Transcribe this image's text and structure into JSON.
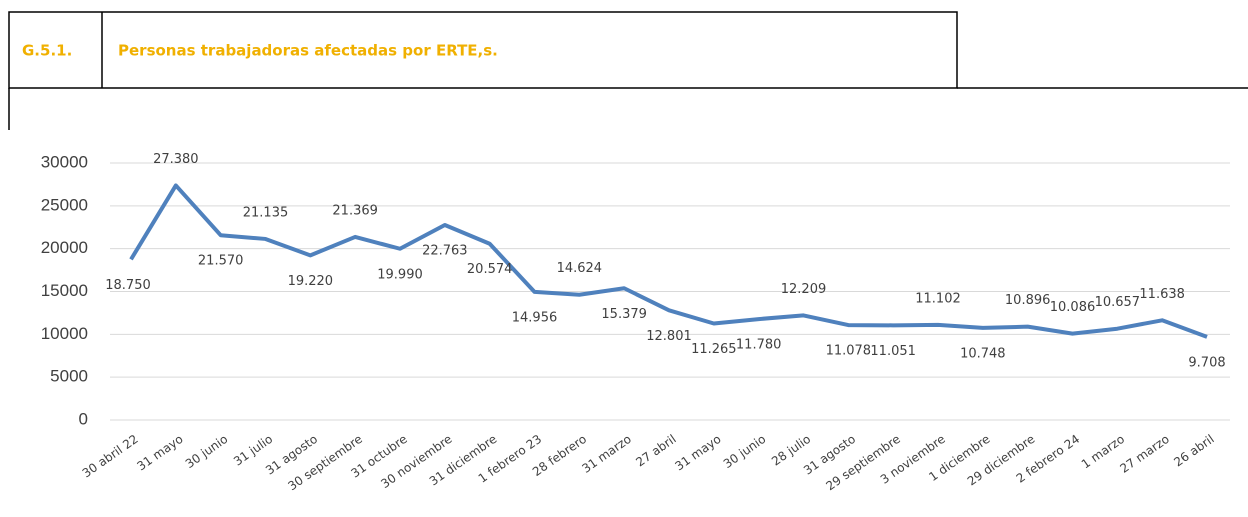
{
  "header": {
    "code": "G.5.1.",
    "title": "Personas trabajadoras afectadas por ERTE,s."
  },
  "chart_data": {
    "type": "line",
    "categories": [
      "30 abril 22",
      "31 mayo",
      "30 junio",
      "31 julio",
      "31 agosto",
      "30 septiembre",
      "31 octubre",
      "30 noviembre",
      "31 diciembre",
      "1 febrero 23",
      "28 febrero",
      "31 marzo",
      "27 abril",
      "31 mayo",
      "30 junio",
      "28 julio",
      "31 agosto",
      "29 septiembre",
      "3 noviembre",
      "1 diciembre",
      "29 diciembre",
      "2 febrero 24",
      "1 marzo",
      "27 marzo",
      "26 abril"
    ],
    "series": [
      {
        "color": "#4f81bd",
        "values": [
          18750,
          27380,
          21570,
          21135,
          19220,
          21369,
          19990,
          22763,
          20574,
          14956,
          14624,
          15379,
          12801,
          11265,
          11780,
          12209,
          11078,
          11051,
          11102,
          10748,
          10896,
          10086,
          10657,
          11638,
          9708
        ],
        "value_labels": [
          "18.750",
          "27.380",
          "21.570",
          "21.135",
          "19.220",
          "21.369",
          "19.990",
          "22.763",
          "20.574",
          "14.956",
          "14.624",
          "15.379",
          "12.801",
          "11.265",
          "11.780",
          "12.209",
          "11.078",
          "11.051",
          "11.102",
          "10.748",
          "10.896",
          "10.086",
          "10.657",
          "11.638",
          "9.708"
        ]
      }
    ],
    "ylim": [
      0,
      30000
    ],
    "yticks": [
      0,
      5000,
      10000,
      15000,
      20000,
      25000,
      30000
    ],
    "grid": true
  }
}
